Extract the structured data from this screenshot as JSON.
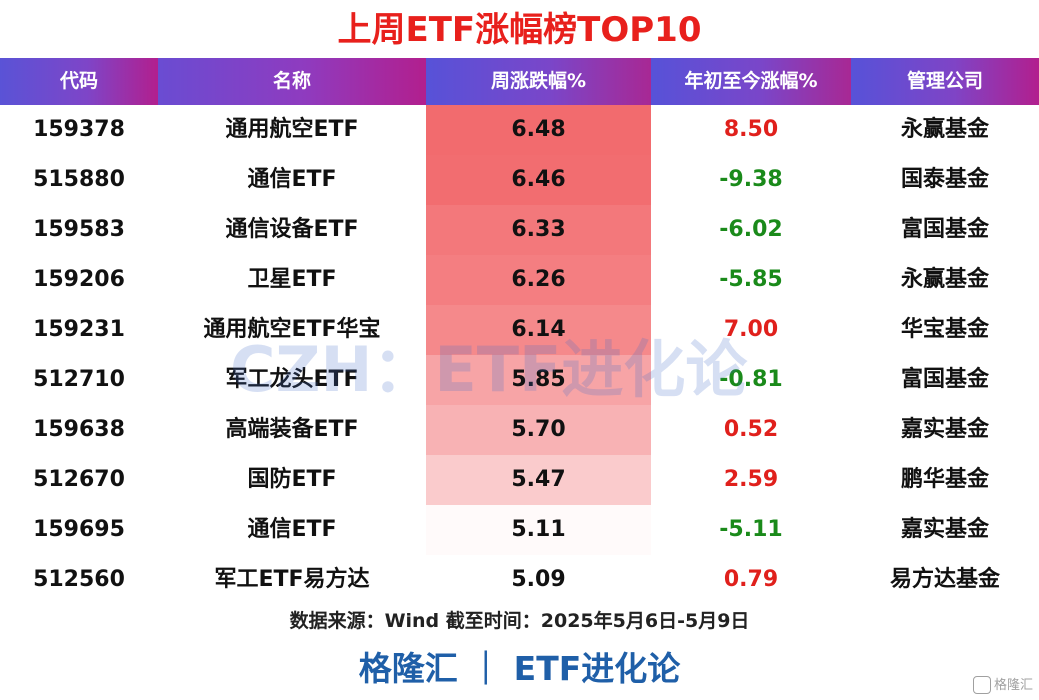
{
  "title": "上周ETF涨幅榜TOP10",
  "headers": [
    "代码",
    "名称",
    "周涨跌幅%",
    "年初至今涨幅%",
    "管理公司"
  ],
  "rows": [
    {
      "code": "159378",
      "name": "通用航空ETF",
      "week": "6.48",
      "ytd": "8.50",
      "company": "永赢基金"
    },
    {
      "code": "515880",
      "name": "通信ETF",
      "week": "6.46",
      "ytd": "-9.38",
      "company": "国泰基金"
    },
    {
      "code": "159583",
      "name": "通信设备ETF",
      "week": "6.33",
      "ytd": "-6.02",
      "company": "富国基金"
    },
    {
      "code": "159206",
      "name": "卫星ETF",
      "week": "6.26",
      "ytd": "-5.85",
      "company": "永赢基金"
    },
    {
      "code": "159231",
      "name": "通用航空ETF华宝",
      "week": "6.14",
      "ytd": "7.00",
      "company": "华宝基金"
    },
    {
      "code": "512710",
      "name": "军工龙头ETF",
      "week": "5.85",
      "ytd": "-0.81",
      "company": "富国基金"
    },
    {
      "code": "159638",
      "name": "高端装备ETF",
      "week": "5.70",
      "ytd": "0.52",
      "company": "嘉实基金"
    },
    {
      "code": "512670",
      "name": "国防ETF",
      "week": "5.47",
      "ytd": "2.59",
      "company": "鹏华基金"
    },
    {
      "code": "159695",
      "name": "通信ETF",
      "week": "5.11",
      "ytd": "-5.11",
      "company": "嘉实基金"
    },
    {
      "code": "512560",
      "name": "军工ETF易方达",
      "week": "5.09",
      "ytd": "0.79",
      "company": "易方达基金"
    }
  ],
  "colors": {
    "title": "#e8201c",
    "positive": "#e0201c",
    "negative": "#1a8a1a",
    "heat_high": "#f26b6e",
    "heat_low": "#ffffff"
  },
  "watermark": "CZH：ETF进化论",
  "source": "数据来源：Wind 截至时间：2025年5月6日-5月9日",
  "footer": "格隆汇 ｜ ETF进化论",
  "corner_mark": "格隆汇"
}
